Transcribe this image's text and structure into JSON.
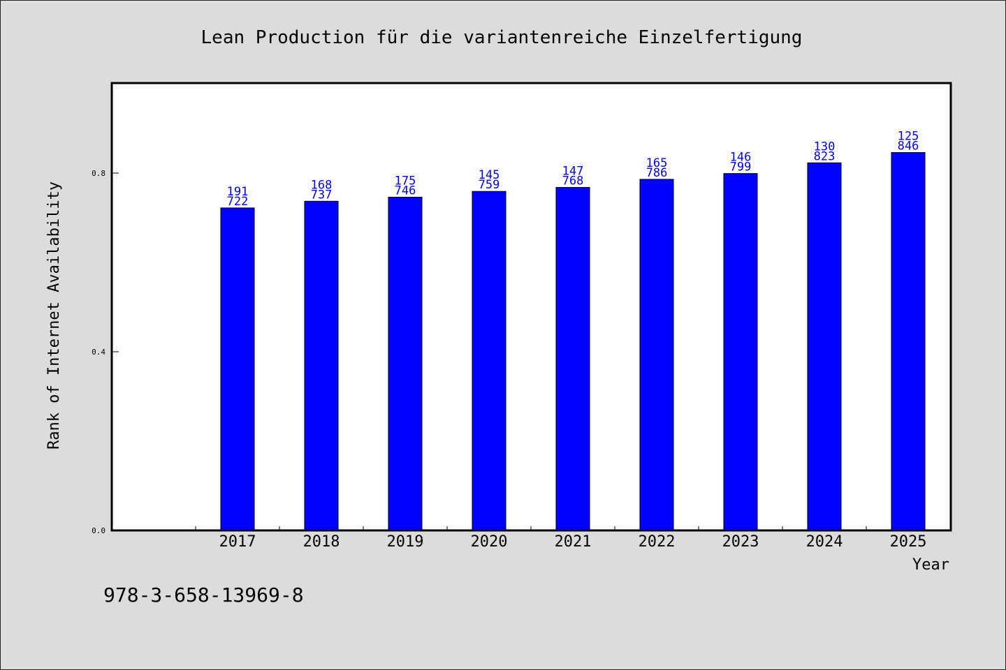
{
  "chart_data": {
    "type": "bar",
    "title": "Lean Production für die variantenreiche Einzelfertigung",
    "xlabel": "Year",
    "ylabel": "Rank of Internet Availability",
    "categories": [
      "2017",
      "2018",
      "2019",
      "2020",
      "2021",
      "2022",
      "2023",
      "2024",
      "2025"
    ],
    "values": [
      0.722,
      0.737,
      0.746,
      0.759,
      0.768,
      0.786,
      0.799,
      0.823,
      0.846
    ],
    "data_labels": [
      [
        "191",
        "722"
      ],
      [
        "168",
        "737"
      ],
      [
        "175",
        "746"
      ],
      [
        "145",
        "759"
      ],
      [
        "147",
        "768"
      ],
      [
        "165",
        "786"
      ],
      [
        "146",
        "799"
      ],
      [
        "130",
        "823"
      ],
      [
        "125",
        "846"
      ]
    ],
    "yticks": [
      "0.0",
      "0.4",
      "0.8"
    ],
    "ylim": [
      0,
      1.0
    ],
    "bar_color": "#0000ff",
    "plot_background": "#ffffff",
    "page_background": "#dcdcdc",
    "grid": false,
    "legend": "none"
  },
  "footer": {
    "isbn": "978-3-658-13969-8"
  }
}
